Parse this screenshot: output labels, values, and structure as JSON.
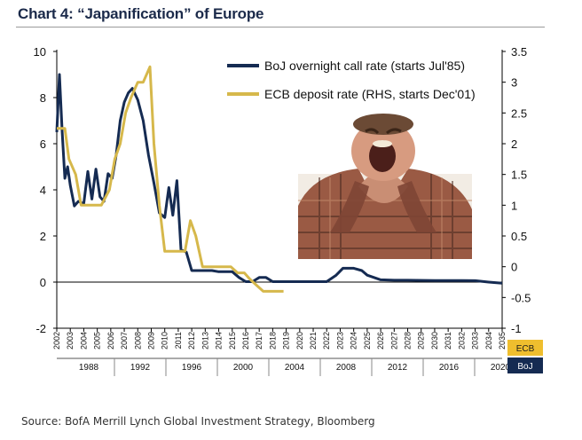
{
  "title": "Chart 4: “Japanification” of Europe",
  "source": "Source:  BofA Merrill Lynch Global Investment Strategy, Bloomberg",
  "colors": {
    "boj": "#152b52",
    "ecb": "#d6b84b",
    "axis": "#000000",
    "boj_box": "#152b52",
    "ecb_box": "#efbe2e"
  },
  "image_description_icon": "meme-man-laughing-photo",
  "chart_data": {
    "type": "line",
    "title": "“Japanification” of Europe",
    "legend_position": "top-right",
    "grid": false,
    "y_left": {
      "ticks": [
        "10",
        "8",
        "6",
        "4",
        "2",
        "0",
        "-2"
      ],
      "ylim": [
        -2,
        10
      ]
    },
    "y_right": {
      "ticks": [
        "3.5",
        "3",
        "2.5",
        "2",
        "1.5",
        "1",
        "0.5",
        "0",
        "-0.5",
        "-1"
      ],
      "ylim": [
        -1,
        3.5
      ]
    },
    "ecb_axis": {
      "label": "ECB",
      "ticks": [
        "2002",
        "2003",
        "2004",
        "2005",
        "2006",
        "2007",
        "2008",
        "2009",
        "2010",
        "2011",
        "2012",
        "2013",
        "2014",
        "2015",
        "2016",
        "2017",
        "2018",
        "2019",
        "2020",
        "2021",
        "2022",
        "2023",
        "2024",
        "2025",
        "2026",
        "2027",
        "2028",
        "2029",
        "2030",
        "2031",
        "2032",
        "2033",
        "2034",
        "2035"
      ]
    },
    "boj_axis": {
      "label": "BoJ",
      "ticks": [
        "1988",
        "1992",
        "1996",
        "2000",
        "2004",
        "2008",
        "2012",
        "2016",
        "2020"
      ]
    },
    "series": [
      {
        "name": "BoJ overnight call rate (starts Jul'85)",
        "axis": "left",
        "x": [
          2002,
          2002.2,
          2002.4,
          2002.6,
          2002.8,
          2003,
          2003.3,
          2003.6,
          2004,
          2004.3,
          2004.6,
          2004.9,
          2005.2,
          2005.5,
          2005.8,
          2006.1,
          2006.4,
          2006.7,
          2007,
          2007.3,
          2007.6,
          2008,
          2008.4,
          2008.8,
          2009.2,
          2009.6,
          2010,
          2010.3,
          2010.6,
          2010.9,
          2011.2,
          2011.6,
          2012,
          2012.5,
          2013,
          2013.5,
          2014,
          2014.5,
          2015,
          2015.5,
          2016,
          2016.5,
          2017,
          2017.5,
          2018,
          2020,
          2022,
          2022.7,
          2023.2,
          2024,
          2024.6,
          2025,
          2026,
          2027,
          2028,
          2030,
          2032,
          2033,
          2034,
          2035
        ],
        "values": [
          6.5,
          9.0,
          6.5,
          4.5,
          5.0,
          4.2,
          3.3,
          3.5,
          3.4,
          4.8,
          3.6,
          4.9,
          3.7,
          3.5,
          4.7,
          4.5,
          5.5,
          7.0,
          7.8,
          8.2,
          8.4,
          7.9,
          7.0,
          5.5,
          4.3,
          3.0,
          2.8,
          4.1,
          2.9,
          4.4,
          1.4,
          1.3,
          0.5,
          0.5,
          0.5,
          0.5,
          0.45,
          0.45,
          0.45,
          0.2,
          0.02,
          0.02,
          0.2,
          0.2,
          0.02,
          0.02,
          0.02,
          0.3,
          0.6,
          0.6,
          0.5,
          0.3,
          0.1,
          0.08,
          0.08,
          0.07,
          0.07,
          0.06,
          0.0,
          -0.05
        ]
      },
      {
        "name": "ECB deposit rate (RHS, starts Dec'01)",
        "axis": "right",
        "x": [
          2002,
          2002.6,
          2002.9,
          2003.4,
          2003.8,
          2004,
          2004.6,
          2005.3,
          2005.9,
          2006.3,
          2006.7,
          2007.1,
          2007.5,
          2008,
          2008.4,
          2008.9,
          2009.2,
          2009.6,
          2010,
          2010.6,
          2011.2,
          2011.5,
          2011.9,
          2012.3,
          2012.8,
          2013.5,
          2014.2,
          2014.9,
          2015.4,
          2015.9,
          2016.3,
          2016.8,
          2017.3,
          2017.8,
          2018.3,
          2018.8
        ],
        "values": [
          2.25,
          2.25,
          1.75,
          1.5,
          1.0,
          1.0,
          1.0,
          1.0,
          1.25,
          1.75,
          2.0,
          2.5,
          2.75,
          3.0,
          3.0,
          3.25,
          2.0,
          1.0,
          0.25,
          0.25,
          0.25,
          0.25,
          0.75,
          0.5,
          0.0,
          0.0,
          0.0,
          0.0,
          -0.1,
          -0.1,
          -0.2,
          -0.3,
          -0.4,
          -0.4,
          -0.4,
          -0.4
        ]
      }
    ]
  }
}
